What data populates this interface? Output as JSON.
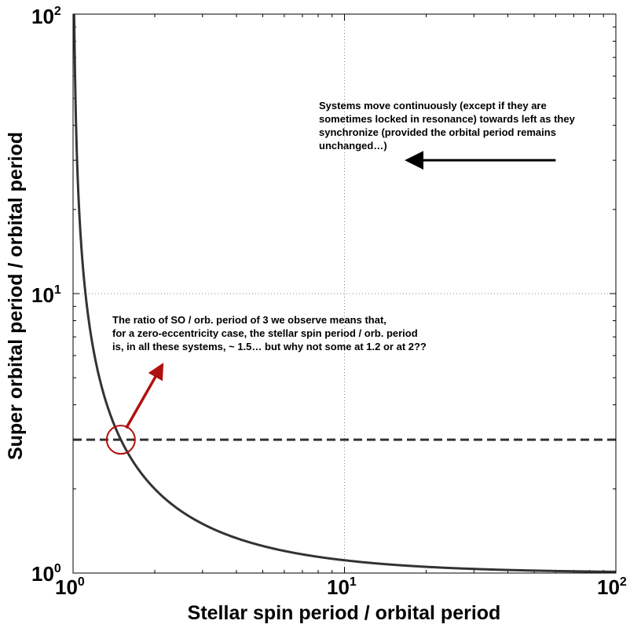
{
  "chart_data": {
    "type": "line",
    "xlabel": "Stellar spin period / orbital period",
    "ylabel": "Super orbital period / orbital period",
    "xscale": "log",
    "yscale": "log",
    "xlim": [
      1,
      100
    ],
    "ylim": [
      1,
      100
    ],
    "grid": "dotted, major decades only",
    "x_ticks": [
      {
        "base": "10",
        "exp": "0",
        "value": 1
      },
      {
        "base": "10",
        "exp": "1",
        "value": 10
      },
      {
        "base": "10",
        "exp": "2",
        "value": 100
      }
    ],
    "y_ticks": [
      {
        "base": "10",
        "exp": "0",
        "value": 1
      },
      {
        "base": "10",
        "exp": "1",
        "value": 10
      },
      {
        "base": "10",
        "exp": "2",
        "value": 100
      }
    ],
    "series": [
      {
        "formula": "y = 1 / (1 - 1/x)",
        "color": "#333333",
        "x": [
          1.01,
          1.02,
          1.05,
          1.1,
          1.2,
          1.3,
          1.4,
          1.5,
          1.6,
          1.8,
          2,
          2.5,
          3,
          4,
          5,
          7,
          10,
          15,
          20,
          30,
          50,
          70,
          100
        ],
        "y": [
          101,
          51,
          21,
          11,
          6,
          4.33,
          3.5,
          3,
          2.67,
          2.25,
          2,
          1.67,
          1.5,
          1.33,
          1.25,
          1.17,
          1.11,
          1.07,
          1.05,
          1.03,
          1.02,
          1.01,
          1.01
        ]
      }
    ],
    "reference_line": {
      "y": 3,
      "style": "dashed",
      "color": "#333333"
    },
    "highlight": {
      "x": 1.5,
      "y": 3,
      "color": "#b01010"
    },
    "annotations": [
      {
        "id": "sync",
        "lines": [
          "Systems move continuously (except if they are",
          "sometimes locked in resonance) towards left as they",
          "synchronize (provided the orbital period remains",
          "unchanged…)"
        ],
        "arrow": {
          "from": [
            60,
            30
          ],
          "to": [
            17,
            30
          ],
          "color": "#000000"
        }
      },
      {
        "id": "ratio",
        "lines": [
          "The ratio of SO / orb. period of 3 we observe means that,",
          "for a zero-eccentricity case, the stellar spin period / orb. period",
          "is, in all these systems, ~ 1.5… but why not some at 1.2 or at 2??"
        ],
        "arrow": {
          "from": [
            1.57,
            3.3
          ],
          "to": [
            2.13,
            5.55
          ],
          "color": "#b01010"
        }
      }
    ]
  }
}
